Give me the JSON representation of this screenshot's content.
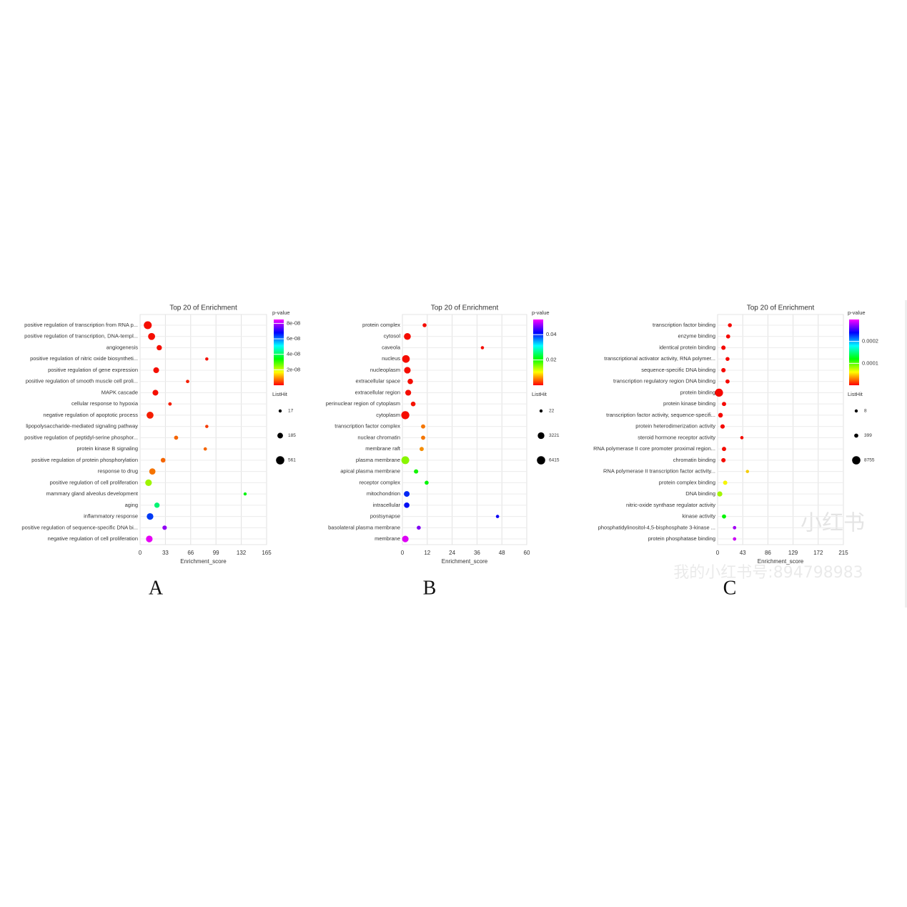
{
  "chart_data": [
    {
      "type": "scatter",
      "title": "Top 20 of  Enrichment",
      "xlabel": "Enrichment_score",
      "panel_label": "A",
      "categories": [
        "positive regulation of transcription from RNA p...",
        "positive regulation of transcription, DNA-templ...",
        "angiogenesis",
        "positive regulation of nitric oxide biosyntheti...",
        "positive regulation of gene expression",
        "positive regulation of smooth muscle cell proli...",
        "MAPK cascade",
        "cellular response to hypoxia",
        "negative regulation of apoptotic process",
        "lipopolysaccharide-mediated signaling pathway",
        "positive regulation of peptidyl-serine phosphor...",
        "protein kinase B signaling",
        "positive regulation of protein phosphorylation",
        "response to drug",
        "positive regulation of cell proliferation",
        "mammary gland alveolus development",
        "aging",
        "inflammatory response",
        "positive regulation of sequence-specific DNA bi...",
        "negative regulation of cell proliferation"
      ],
      "values": [
        10,
        15,
        25,
        87,
        21,
        62,
        20,
        39,
        13,
        87,
        47,
        85,
        30,
        16,
        11,
        137,
        22,
        13,
        32,
        12
      ],
      "sizes": [
        500,
        350,
        150,
        20,
        200,
        25,
        200,
        30,
        350,
        20,
        60,
        25,
        100,
        250,
        300,
        17,
        150,
        300,
        80,
        300
      ],
      "pvalues": [
        1e-09,
        1e-09,
        1e-09,
        1e-09,
        1e-09,
        2e-09,
        1e-09,
        2e-09,
        2e-09,
        4e-09,
        7e-09,
        7e-09,
        7e-09,
        8e-09,
        2.3e-08,
        3.5e-08,
        4.2e-08,
        6.4e-08,
        7.8e-08,
        8.4e-08
      ],
      "xlim": [
        0,
        165
      ],
      "xticks": [
        0,
        33,
        66,
        99,
        132,
        165
      ],
      "colorbar_title": "p-value",
      "colorbar_lim": [
        0,
        8.5e-08
      ],
      "colorbar_ticks": [
        {
          "value": 8e-08,
          "label": "8e-08"
        },
        {
          "value": 6e-08,
          "label": "6e-08"
        },
        {
          "value": 4e-08,
          "label": "4e-08"
        },
        {
          "value": 2e-08,
          "label": "2e-08"
        }
      ],
      "size_title": "ListHit",
      "size_ticks": [
        17,
        185,
        561
      ],
      "grid": true
    },
    {
      "type": "scatter",
      "title": "Top 20 of  Enrichment",
      "xlabel": "Enrichment_score",
      "panel_label": "B",
      "categories": [
        "protein complex",
        "cytosol",
        "caveola",
        "nucleus",
        "nucleoplasm",
        "extracellular space",
        "extracellular region",
        "perinuclear region of cytoplasm",
        "cytoplasm",
        "transcription factor complex",
        "nuclear chromatin",
        "membrane raft",
        "plasma membrane",
        "apical plasma membrane",
        "receptor complex",
        "mitochondrion",
        "intracellular",
        "postsynapse",
        "basolateral plasma membrane",
        "membrane"
      ],
      "values": [
        10.7,
        2.4,
        38.6,
        1.7,
        2.4,
        3.8,
        2.8,
        5.2,
        1.4,
        10,
        10,
        9.3,
        1.4,
        6.6,
        11.7,
        2.1,
        2.1,
        45.9,
        7.9,
        1.4
      ],
      "sizes": [
        300,
        3500,
        40,
        5000,
        3000,
        1500,
        2000,
        800,
        6000,
        400,
        400,
        400,
        5500,
        500,
        300,
        1800,
        1500,
        50,
        300,
        3000
      ],
      "pvalues": [
        0.0005,
        0.0005,
        0.0005,
        0.0005,
        0.0005,
        0.0005,
        0.0005,
        0.0008,
        0.0005,
        0.005,
        0.005,
        0.006,
        0.015,
        0.02,
        0.021,
        0.04,
        0.041,
        0.042,
        0.047,
        0.051
      ],
      "xlim": [
        0,
        60
      ],
      "xticks": [
        0,
        12,
        24,
        36,
        48,
        60
      ],
      "colorbar_title": "p-value",
      "colorbar_lim": [
        0,
        0.052
      ],
      "colorbar_ticks": [
        0.04,
        0.02
      ],
      "size_title": "ListHit",
      "size_ticks": [
        22,
        3221,
        6415
      ],
      "grid": true
    },
    {
      "type": "scatter",
      "title": "Top 20 of  Enrichment",
      "xlabel": "Enrichment_score",
      "panel_label": "C",
      "categories": [
        "transcription factor binding",
        "enzyme binding",
        "identical protein binding",
        "transcriptional activator activity, RNA polymer...",
        "sequence-specific DNA binding",
        "transcription regulatory region DNA binding",
        "protein binding",
        "protein kinase binding",
        "transcription factor activity, sequence-specifi...",
        "protein heterodimerization activity",
        "steroid hormone receptor activity",
        "RNA polymerase II core promoter proximal region...",
        "chromatin binding",
        "RNA polymerase II transcription factor activity...",
        "protein complex binding",
        "DNA binding",
        "nitric-oxide synthase regulator activity",
        "kinase activity",
        "phosphatidylinositol-4,5-bisphosphate 3-kinase ...",
        "protein phosphatase binding"
      ],
      "values": [
        21,
        18,
        10,
        17,
        10,
        17,
        2.4,
        11,
        5,
        8.5,
        41.5,
        11,
        10,
        51,
        13,
        3.7,
        null,
        11,
        29,
        29
      ],
      "sizes": [
        300,
        400,
        600,
        300,
        600,
        400,
        8000,
        500,
        900,
        600,
        40,
        500,
        600,
        20,
        500,
        1500,
        null,
        400,
        60,
        60
      ],
      "pvalues": [
        2e-06,
        2e-06,
        2e-06,
        2e-06,
        2e-06,
        2e-06,
        2e-06,
        2e-06,
        2e-06,
        2e-06,
        3e-06,
        3e-06,
        3e-06,
        5e-05,
        6e-05,
        8e-05,
        null,
        0.00012,
        0.00028,
        0.00029
      ],
      "xlim": [
        0,
        215
      ],
      "xticks": [
        0,
        43,
        86,
        129,
        172,
        215
      ],
      "colorbar_title": "p-value",
      "colorbar_lim": [
        0,
        0.0003
      ],
      "colorbar_ticks": [
        0.0002,
        0.0001
      ],
      "size_title": "ListHit",
      "size_ticks": [
        8,
        399,
        8755
      ],
      "grid": true
    }
  ],
  "watermark": {
    "logo": "小红书",
    "account": "我的小红书号:894798983"
  }
}
